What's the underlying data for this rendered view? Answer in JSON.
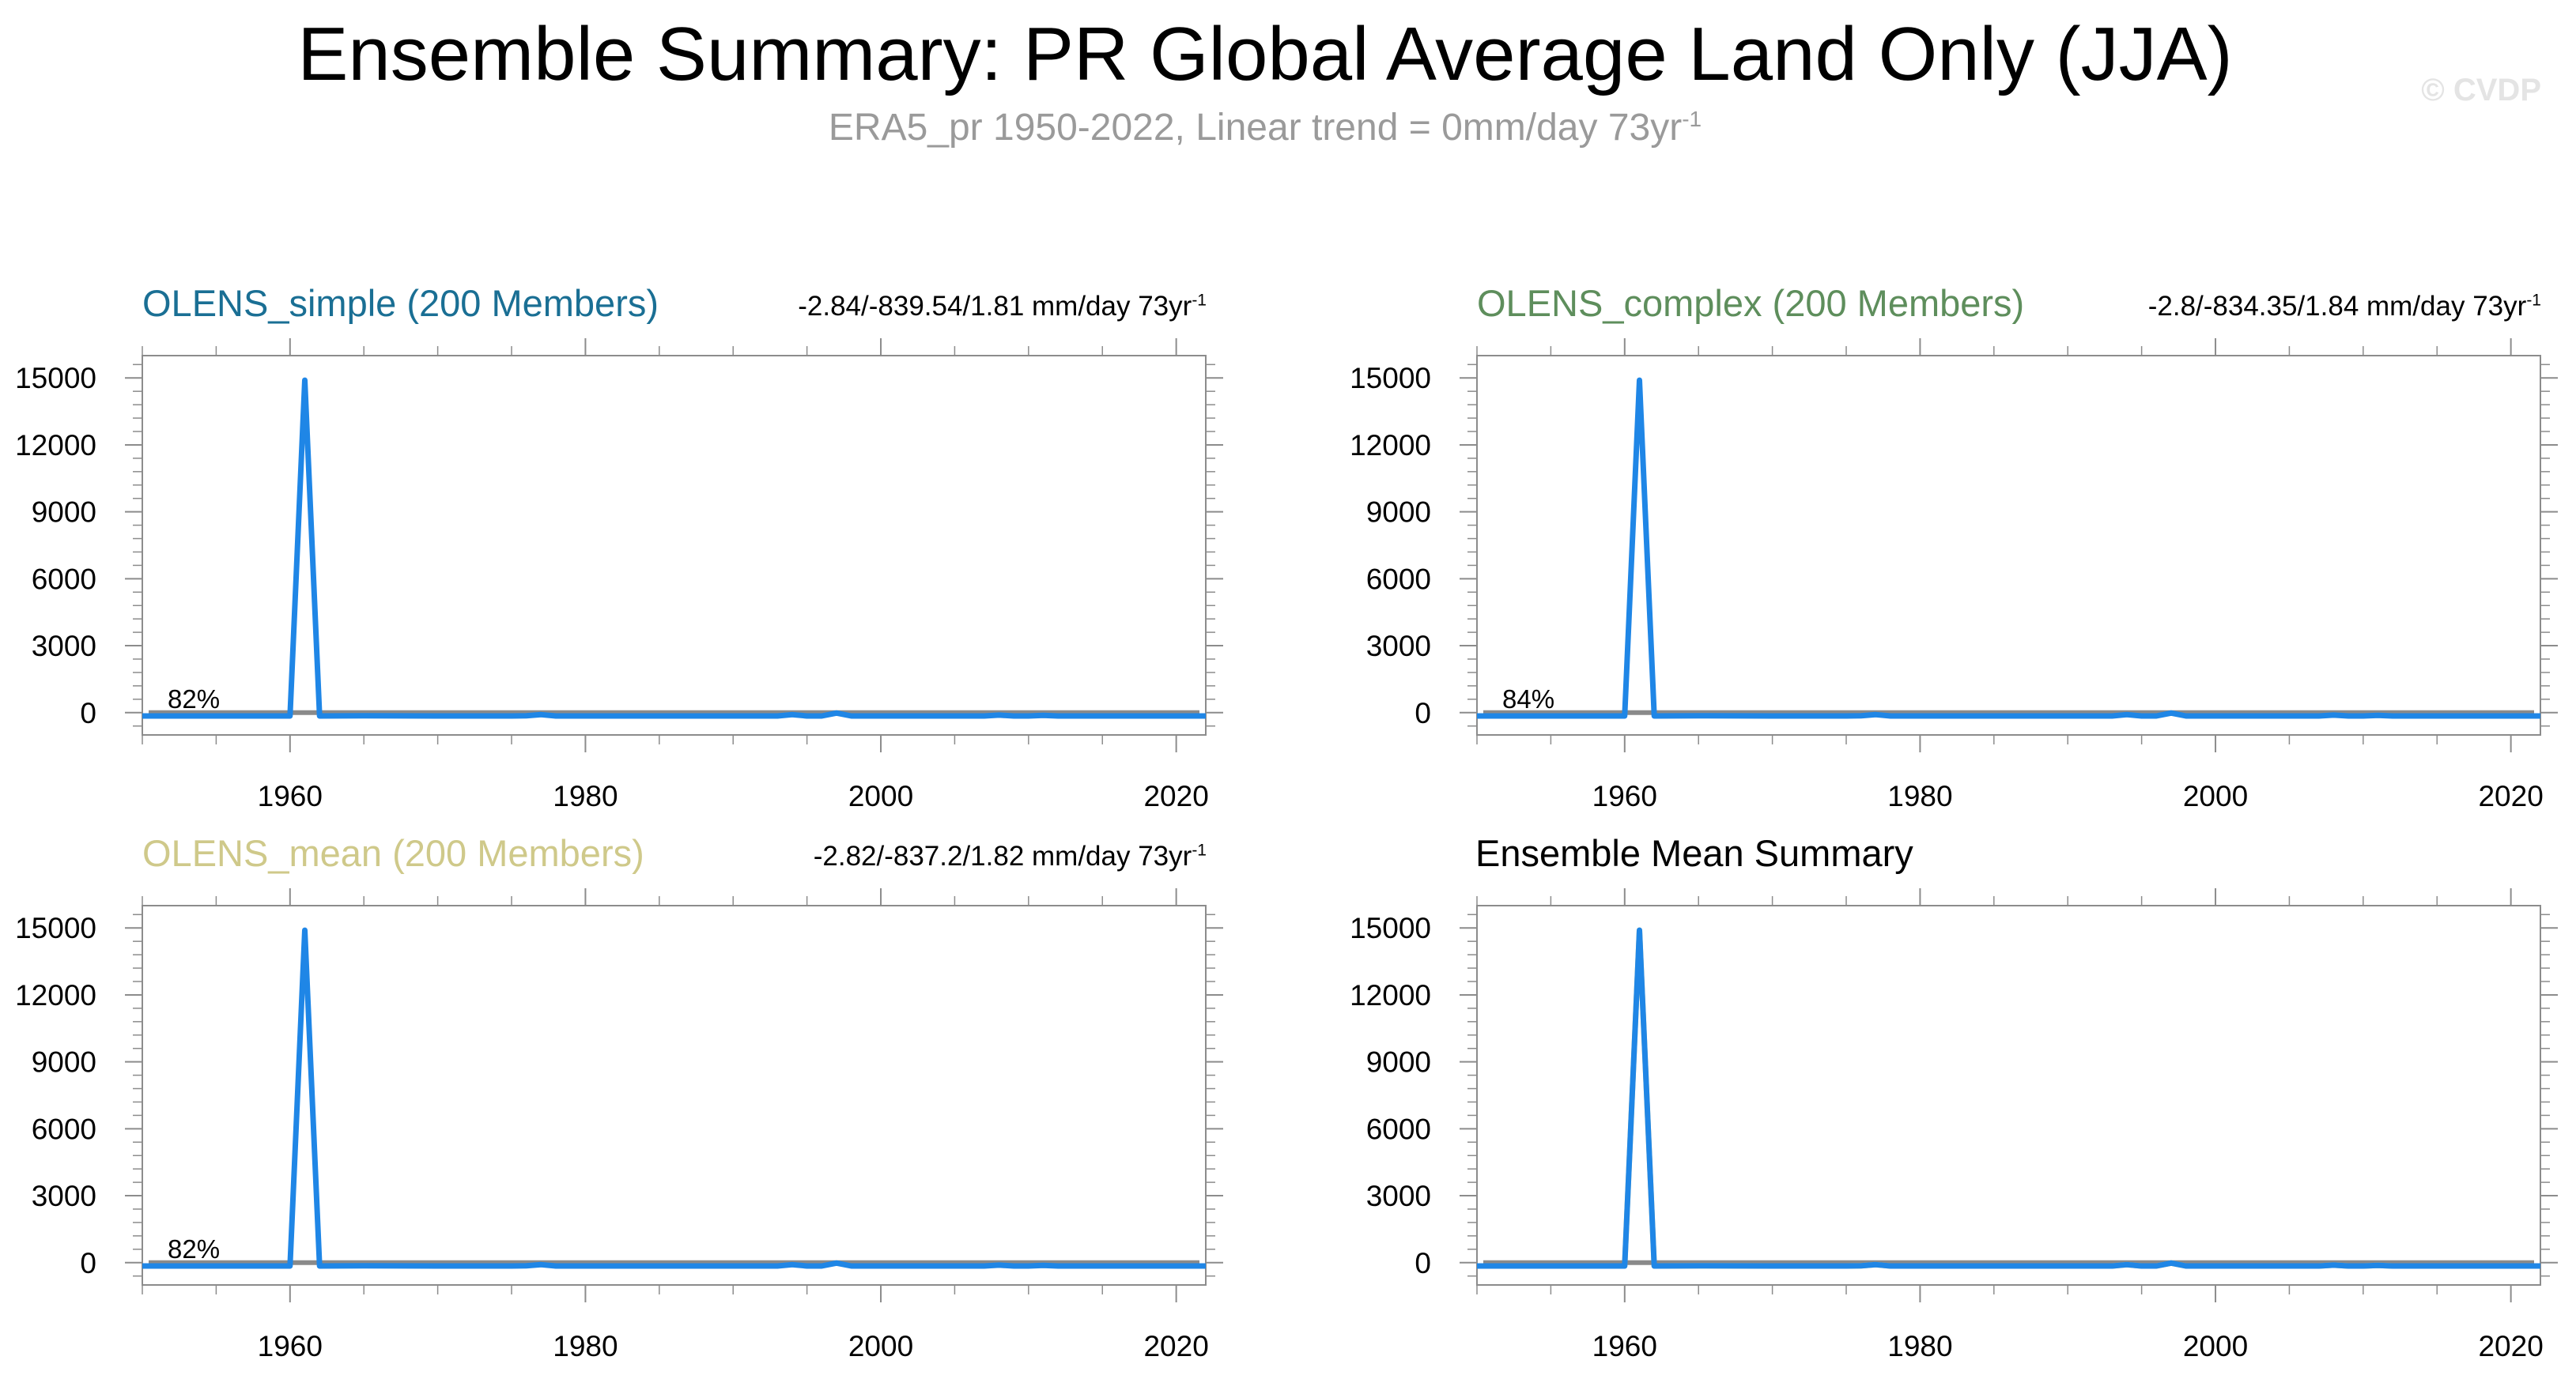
{
  "header": {
    "title": "Ensemble Summary: PR Global Average Land Only (JJA)",
    "subtitle": "ERA5_pr 1950-2022, Linear trend = 0mm/day 73yr",
    "subtitle_sup": "-1",
    "watermark": "© CVDP"
  },
  "colors": {
    "blue": "#1f86e6",
    "olive": "#c9c679",
    "zero_line": "#8a8a8a",
    "frame": "#8c8c8c",
    "title_simple": "#1a6f94",
    "title_complex": "#5e8e5c",
    "title_mean": "#cfc98a",
    "title_summary": "#000000"
  },
  "chart_data": [
    {
      "type": "line",
      "title": "OLENS_simple (200 Members)",
      "stats": "-2.84/-839.54/1.81 mm/day 73yr",
      "stats_sup": "-1",
      "annotation": "82%",
      "xlim": [
        1950,
        2022
      ],
      "ylim": [
        -1000,
        16000
      ],
      "xticks": [
        1960,
        1980,
        2000,
        2020
      ],
      "yticks": [
        0,
        3000,
        6000,
        9000,
        12000,
        15000
      ],
      "reference_line": 0,
      "series": [
        {
          "color": "blue",
          "x": [
            1950,
            1960,
            1961,
            1962,
            1965,
            1970,
            1975,
            1976,
            1977,
            1978,
            1985,
            1990,
            1993,
            1994,
            1995,
            1996,
            1997,
            1998,
            2005,
            2007,
            2008,
            2009,
            2010,
            2011,
            2012,
            2022
          ],
          "y": [
            -150,
            -150,
            14900,
            -150,
            -140,
            -150,
            -150,
            -140,
            -90,
            -150,
            -150,
            -150,
            -150,
            -90,
            -150,
            -150,
            -20,
            -150,
            -150,
            -150,
            -110,
            -150,
            -150,
            -120,
            -150,
            -150
          ]
        }
      ]
    },
    {
      "type": "line",
      "title": "OLENS_complex (200 Members)",
      "stats": "-2.8/-834.35/1.84 mm/day 73yr",
      "stats_sup": "-1",
      "annotation": "84%",
      "xlim": [
        1950,
        2022
      ],
      "ylim": [
        -1000,
        16000
      ],
      "xticks": [
        1960,
        1980,
        2000,
        2020
      ],
      "yticks": [
        0,
        3000,
        6000,
        9000,
        12000,
        15000
      ],
      "reference_line": 0,
      "series": [
        {
          "color": "blue",
          "x": [
            1950,
            1960,
            1961,
            1962,
            1965,
            1970,
            1975,
            1976,
            1977,
            1978,
            1985,
            1990,
            1993,
            1994,
            1995,
            1996,
            1997,
            1998,
            2005,
            2007,
            2008,
            2009,
            2010,
            2011,
            2012,
            2022
          ],
          "y": [
            -150,
            -150,
            14900,
            -150,
            -140,
            -150,
            -150,
            -140,
            -90,
            -150,
            -150,
            -150,
            -150,
            -90,
            -150,
            -150,
            -20,
            -150,
            -150,
            -150,
            -110,
            -150,
            -150,
            -120,
            -150,
            -150
          ]
        }
      ]
    },
    {
      "type": "line",
      "title": "OLENS_mean (200 Members)",
      "stats": "-2.82/-837.2/1.82 mm/day 73yr",
      "stats_sup": "-1",
      "annotation": "82%",
      "xlim": [
        1950,
        2022
      ],
      "ylim": [
        -1000,
        16000
      ],
      "xticks": [
        1960,
        1980,
        2000,
        2020
      ],
      "yticks": [
        0,
        3000,
        6000,
        9000,
        12000,
        15000
      ],
      "reference_line": 0,
      "series": [
        {
          "color": "blue",
          "x": [
            1950,
            1960,
            1961,
            1962,
            1965,
            1970,
            1975,
            1976,
            1977,
            1978,
            1985,
            1990,
            1993,
            1994,
            1995,
            1996,
            1997,
            1998,
            2005,
            2007,
            2008,
            2009,
            2010,
            2011,
            2012,
            2022
          ],
          "y": [
            -150,
            -150,
            14900,
            -150,
            -140,
            -150,
            -150,
            -140,
            -90,
            -150,
            -150,
            -150,
            -150,
            -90,
            -150,
            -150,
            -20,
            -150,
            -150,
            -150,
            -110,
            -150,
            -150,
            -120,
            -150,
            -150
          ]
        }
      ]
    },
    {
      "type": "line",
      "title": "Ensemble Mean Summary",
      "stats": "",
      "stats_sup": "",
      "annotation": "",
      "xlim": [
        1950,
        2022
      ],
      "ylim": [
        -1000,
        16000
      ],
      "xticks": [
        1960,
        1980,
        2000,
        2020
      ],
      "yticks": [
        0,
        3000,
        6000,
        9000,
        12000,
        15000
      ],
      "reference_line": 0,
      "series": [
        {
          "color": "olive",
          "x": [
            1950,
            1960,
            1961,
            1962,
            1965,
            1970,
            1975,
            1976,
            1977,
            1978,
            1985,
            1990,
            1993,
            1994,
            1995,
            1996,
            1997,
            1998,
            2005,
            2007,
            2008,
            2009,
            2010,
            2011,
            2012,
            2022
          ],
          "y": [
            -150,
            -150,
            14900,
            -150,
            -140,
            -150,
            -150,
            -140,
            -90,
            -150,
            -150,
            -150,
            -150,
            -90,
            -150,
            -150,
            -20,
            -150,
            -150,
            -150,
            -110,
            -150,
            -150,
            -120,
            -150,
            -150
          ]
        },
        {
          "color": "blue",
          "x": [
            1950,
            1960,
            1961,
            1962,
            1965,
            1970,
            1975,
            1976,
            1977,
            1978,
            1985,
            1990,
            1993,
            1994,
            1995,
            1996,
            1997,
            1998,
            2005,
            2007,
            2008,
            2009,
            2010,
            2011,
            2012,
            2022
          ],
          "y": [
            -150,
            -150,
            14900,
            -150,
            -140,
            -150,
            -150,
            -140,
            -90,
            -150,
            -150,
            -150,
            -150,
            -90,
            -150,
            -150,
            -20,
            -150,
            -150,
            -150,
            -110,
            -150,
            -150,
            -120,
            -150,
            -150
          ]
        }
      ]
    }
  ]
}
